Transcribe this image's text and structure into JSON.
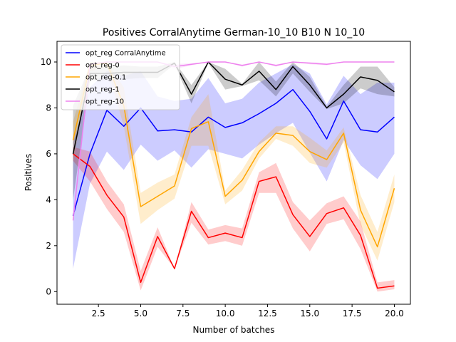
{
  "chart_data": {
    "type": "line",
    "title": "Positives CorralAnytime German-10_10 B10 N 10_10",
    "xlabel": "Number of batches",
    "ylabel": "Positives",
    "xlim": [
      0.05,
      20.95
    ],
    "ylim": [
      -0.55,
      10.9
    ],
    "xticks": [
      2.5,
      5.0,
      7.5,
      10.0,
      12.5,
      15.0,
      17.5,
      20.0
    ],
    "xtick_labels": [
      "2.5",
      "5.0",
      "7.5",
      "10.0",
      "12.5",
      "15.0",
      "17.5",
      "20.0"
    ],
    "yticks": [
      0,
      2,
      4,
      6,
      8,
      10
    ],
    "ytick_labels": [
      "0",
      "2",
      "4",
      "6",
      "8",
      "10"
    ],
    "grid": false,
    "legend_position": "top-left",
    "x": [
      1,
      2,
      3,
      4,
      5,
      6,
      7,
      8,
      9,
      10,
      11,
      12,
      13,
      14,
      15,
      16,
      17,
      18,
      19,
      20
    ],
    "series": [
      {
        "name": "opt_reg CorralAnytime",
        "color": "#0000ff",
        "fill_color": "#0000ff",
        "values": [
          3.3,
          6.0,
          7.9,
          7.2,
          8.0,
          7.0,
          7.05,
          6.95,
          7.6,
          7.15,
          7.35,
          7.75,
          8.2,
          8.8,
          7.85,
          6.65,
          8.3,
          7.05,
          6.95,
          7.6
        ],
        "lower": [
          1.0,
          4.7,
          6.1,
          5.3,
          6.4,
          5.7,
          6.15,
          5.4,
          6.2,
          6.0,
          5.8,
          6.4,
          6.9,
          7.35,
          6.05,
          4.8,
          6.6,
          5.5,
          4.9,
          6.0
        ],
        "upper": [
          6.5,
          8.9,
          9.6,
          9.4,
          9.6,
          8.5,
          8.3,
          8.4,
          9.3,
          8.2,
          8.4,
          9.1,
          9.5,
          9.9,
          9.5,
          8.15,
          9.4,
          8.6,
          9.1,
          9.1
        ]
      },
      {
        "name": "opt_reg-0",
        "color": "#ff0000",
        "fill_color": "#ff0000",
        "values": [
          6.0,
          5.45,
          4.2,
          3.25,
          0.4,
          2.4,
          1.0,
          3.5,
          2.35,
          2.55,
          2.35,
          4.8,
          5.0,
          3.35,
          2.4,
          3.4,
          3.65,
          2.45,
          0.15,
          0.25
        ],
        "lower": [
          5.7,
          4.8,
          3.6,
          2.6,
          0.05,
          1.95,
          1.0,
          3.0,
          2.05,
          2.2,
          2.0,
          4.3,
          4.3,
          2.75,
          1.75,
          2.95,
          3.15,
          1.85,
          0.0,
          0.1
        ],
        "upper": [
          6.3,
          6.1,
          4.8,
          3.8,
          0.9,
          2.8,
          1.0,
          3.9,
          2.7,
          2.9,
          2.75,
          5.2,
          5.6,
          3.9,
          3.1,
          3.85,
          4.15,
          3.05,
          0.4,
          0.5
        ]
      },
      {
        "name": "opt_reg-0.1",
        "color": "#ffa500",
        "fill_color": "#ffa500",
        "values": [
          6.6,
          9.85,
          9.95,
          8.1,
          3.7,
          4.15,
          4.6,
          7.1,
          7.4,
          4.15,
          4.85,
          6.1,
          6.9,
          6.8,
          6.1,
          5.75,
          6.9,
          3.55,
          1.95,
          4.5
        ],
        "lower": [
          5.7,
          9.6,
          9.8,
          7.2,
          2.95,
          3.55,
          4.05,
          6.35,
          6.35,
          3.8,
          4.4,
          5.8,
          6.65,
          6.35,
          5.6,
          5.4,
          6.5,
          2.9,
          1.35,
          3.9
        ],
        "upper": [
          7.4,
          10.0,
          10.0,
          8.9,
          4.3,
          4.75,
          5.1,
          7.6,
          8.6,
          4.4,
          5.3,
          6.5,
          7.2,
          7.2,
          6.7,
          6.15,
          7.15,
          4.2,
          2.6,
          5.1
        ]
      },
      {
        "name": "opt_reg-1",
        "color": "#000000",
        "fill_color": "#000000",
        "values": [
          6.0,
          9.5,
          9.5,
          9.55,
          9.55,
          9.55,
          9.95,
          8.6,
          10.0,
          9.25,
          9.0,
          9.6,
          8.8,
          9.8,
          9.0,
          8.0,
          8.6,
          9.35,
          9.2,
          8.7
        ],
        "lower": [
          4.0,
          9.2,
          9.2,
          9.25,
          9.3,
          9.3,
          9.9,
          8.2,
          9.95,
          8.8,
          8.95,
          9.2,
          8.5,
          9.5,
          8.7,
          7.95,
          8.2,
          8.85,
          8.6,
          8.5
        ],
        "upper": [
          8.1,
          9.8,
          9.8,
          9.85,
          9.8,
          9.8,
          10.0,
          9.0,
          10.0,
          9.7,
          9.05,
          10.0,
          9.15,
          10.0,
          9.35,
          8.05,
          9.0,
          9.8,
          9.8,
          8.9
        ]
      },
      {
        "name": "opt_reg-10",
        "color": "#ee82ee",
        "fill_color": "#ee82ee",
        "values": [
          3.1,
          9.9,
          10.0,
          10.0,
          10.0,
          10.0,
          9.8,
          9.9,
          10.0,
          10.0,
          9.85,
          10.0,
          9.85,
          10.0,
          9.95,
          9.9,
          10.0,
          10.0,
          10.0,
          10.0
        ],
        "lower": [
          3.1,
          9.85,
          10.0,
          10.0,
          10.0,
          10.0,
          9.7,
          9.85,
          10.0,
          10.0,
          9.8,
          10.0,
          9.8,
          10.0,
          9.9,
          9.85,
          10.0,
          10.0,
          10.0,
          10.0
        ],
        "upper": [
          3.1,
          9.95,
          10.0,
          10.0,
          10.0,
          10.0,
          9.9,
          9.95,
          10.0,
          10.0,
          9.9,
          10.0,
          9.9,
          10.0,
          10.0,
          9.95,
          10.0,
          10.0,
          10.0,
          10.0
        ]
      }
    ]
  }
}
